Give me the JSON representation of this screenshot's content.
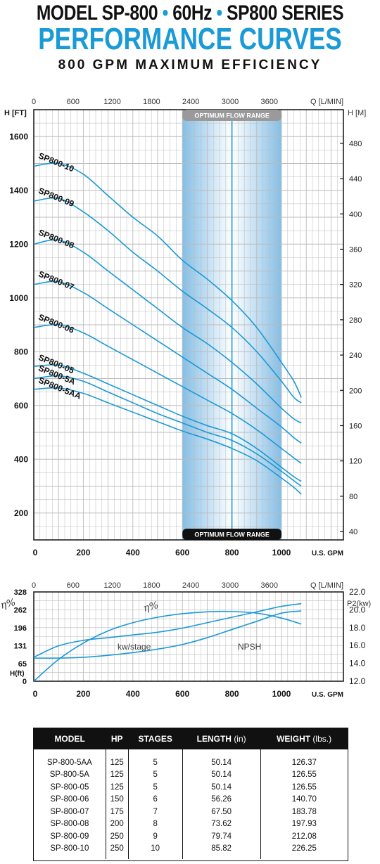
{
  "header": {
    "line1_a": "MODEL SP-800",
    "line1_b": "60Hz",
    "line1_c": "SP800 SERIES",
    "bullet": "•",
    "line2": "PERFORMANCE CURVES",
    "line3": "800 GPM MAXIMUM EFFICIENCY"
  },
  "colors": {
    "accent": "#1a9ad6",
    "grid": "#888888",
    "band": "#7fbce6"
  },
  "chart_data": [
    {
      "type": "line",
      "title": "",
      "xlabel": "U.S. GPM",
      "ylabel": "H [FT]",
      "top_axis_label": "Q [L/MIN]",
      "right_axis_label": "H [M]",
      "xlim": [
        0,
        1250
      ],
      "ylim": [
        100,
        1700
      ],
      "x_ticks": [
        0,
        200,
        400,
        600,
        800,
        1000
      ],
      "x_tick_labels": [
        "0",
        "200",
        "400",
        "600",
        "800",
        "1000"
      ],
      "y_ticks": [
        200,
        400,
        600,
        800,
        1000,
        1200,
        1400,
        1600
      ],
      "y_tick_labels": [
        "200",
        "400",
        "600",
        "800",
        "1000",
        "1200",
        "1400",
        "1600"
      ],
      "top_ticks": [
        0,
        600,
        1200,
        1800,
        2400,
        3000,
        3600
      ],
      "top_tick_labels": [
        "0",
        "600",
        "1200",
        "1800",
        "2400",
        "3000",
        "3600"
      ],
      "right_ticks": [
        40,
        80,
        120,
        160,
        200,
        240,
        280,
        320,
        360,
        400,
        440,
        480
      ],
      "right_tick_labels": [
        "40",
        "80",
        "120",
        "160",
        "200",
        "240",
        "280",
        "320",
        "360",
        "400",
        "440",
        "480"
      ],
      "band": {
        "label": "OPTIMUM FLOW RANGE",
        "x_start": 600,
        "x_end": 1000,
        "center": 800
      },
      "x": [
        0,
        100,
        200,
        300,
        400,
        500,
        600,
        700,
        800,
        900,
        1000,
        1050,
        1080
      ],
      "series": [
        {
          "name": "SP800-10",
          "values": [
            1490,
            1500,
            1460,
            1380,
            1300,
            1230,
            1140,
            1070,
            990,
            890,
            760,
            690,
            630
          ]
        },
        {
          "name": "SP800-09",
          "values": [
            1360,
            1370,
            1320,
            1250,
            1170,
            1100,
            1025,
            960,
            890,
            800,
            690,
            630,
            610
          ]
        },
        {
          "name": "SP800-08",
          "values": [
            1200,
            1215,
            1170,
            1100,
            1030,
            960,
            890,
            830,
            760,
            680,
            590,
            550,
            535
          ]
        },
        {
          "name": "SP800-07",
          "values": [
            1050,
            1060,
            1020,
            960,
            900,
            840,
            780,
            720,
            660,
            590,
            520,
            480,
            460
          ]
        },
        {
          "name": "SP800-06",
          "values": [
            890,
            900,
            870,
            820,
            770,
            720,
            670,
            620,
            570,
            510,
            440,
            405,
            385
          ]
        },
        {
          "name": "SP800-05",
          "values": [
            745,
            750,
            720,
            680,
            640,
            600,
            560,
            525,
            495,
            440,
            370,
            335,
            318
          ]
        },
        {
          "name": "SP800-5A",
          "values": [
            700,
            710,
            690,
            650,
            610,
            570,
            535,
            500,
            470,
            420,
            355,
            320,
            300
          ]
        },
        {
          "name": "SP800-5AA",
          "values": [
            660,
            665,
            645,
            610,
            575,
            540,
            505,
            475,
            440,
            395,
            330,
            295,
            270
          ]
        }
      ]
    },
    {
      "type": "line",
      "title": "",
      "xlabel": "U.S. GPM",
      "ylabel": "H(ft)",
      "left_axis_symbol": "η%",
      "top_axis_label": "Q [L/MIN]",
      "right_axis_label": "P2(kw)",
      "xlim": [
        0,
        1250
      ],
      "ylim": [
        0,
        328
      ],
      "x_ticks": [
        0,
        200,
        400,
        600,
        800,
        1000
      ],
      "x_tick_labels": [
        "0",
        "200",
        "400",
        "600",
        "800",
        "1000"
      ],
      "y_ticks": [
        0,
        65,
        131,
        196,
        262,
        328
      ],
      "y_tick_labels": [
        "0",
        "65",
        "131",
        "196",
        "262",
        "328"
      ],
      "top_ticks": [
        0,
        600,
        1200,
        1800,
        2400,
        3000,
        3600
      ],
      "top_tick_labels": [
        "0",
        "600",
        "1200",
        "1800",
        "2400",
        "3000",
        "3600"
      ],
      "right_ylim": [
        12.0,
        22.0
      ],
      "right_ticks": [
        12.0,
        14.0,
        16.0,
        18.0,
        20.0,
        22.0
      ],
      "right_tick_labels": [
        "12.0",
        "14.0",
        "16.0",
        "18.0",
        "20.0",
        "22.0"
      ],
      "annotations": [
        "η%",
        "kw/stage",
        "NPSH"
      ],
      "x": [
        0,
        100,
        200,
        300,
        400,
        500,
        600,
        700,
        800,
        900,
        1000,
        1080
      ],
      "series": [
        {
          "name": "η%",
          "values": [
            0,
            80,
            140,
            185,
            215,
            235,
            248,
            255,
            256,
            250,
            232,
            210
          ]
        },
        {
          "name": "kw/stage",
          "values": [
            88,
            130,
            150,
            160,
            170,
            180,
            195,
            215,
            235,
            255,
            275,
            285
          ]
        },
        {
          "name": "NPSH",
          "values": [
            85,
            85,
            88,
            95,
            105,
            118,
            135,
            160,
            190,
            220,
            250,
            258
          ]
        }
      ]
    }
  ],
  "table": {
    "headers": [
      "MODEL",
      "HP",
      "STAGES",
      "LENGTH",
      "WEIGHT"
    ],
    "header_units": [
      "",
      "",
      "",
      "(in)",
      "(lbs.)"
    ],
    "rows": [
      [
        "SP-800-5AA",
        "125",
        "5",
        "50.14",
        "126.37"
      ],
      [
        "SP-800-5A",
        "125",
        "5",
        "50.14",
        "126.55"
      ],
      [
        "SP-800-05",
        "125",
        "5",
        "50.14",
        "126.55"
      ],
      [
        "SP-800-06",
        "150",
        "6",
        "56.26",
        "140.70"
      ],
      [
        "SP-800-07",
        "175",
        "7",
        "67.50",
        "183.78"
      ],
      [
        "SP-800-08",
        "200",
        "8",
        "73.62",
        "197.93"
      ],
      [
        "SP-800-09",
        "250",
        "9",
        "79.74",
        "212.08"
      ],
      [
        "SP-800-10",
        "250",
        "10",
        "85.82",
        "226.25"
      ]
    ]
  }
}
